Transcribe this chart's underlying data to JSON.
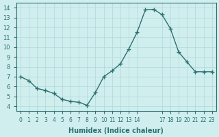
{
  "x": [
    0,
    1,
    2,
    3,
    4,
    5,
    6,
    7,
    8,
    9,
    10,
    11,
    12,
    13,
    14,
    15,
    16,
    17,
    18,
    19,
    20,
    21,
    22,
    23
  ],
  "y": [
    7.0,
    6.6,
    5.8,
    5.6,
    5.3,
    4.7,
    4.5,
    4.4,
    4.1,
    5.4,
    7.0,
    7.6,
    8.3,
    9.8,
    11.5,
    13.8,
    13.85,
    13.3,
    11.9,
    9.5,
    8.5,
    7.5,
    7.5,
    7.5
  ],
  "xlabel": "Humidex (Indice chaleur)",
  "ylim": [
    3.5,
    14.5
  ],
  "xlim": [
    -0.5,
    23.5
  ],
  "line_color": "#2d7070",
  "bg_color": "#d0eeee",
  "grid_color": "#b0d8d8",
  "yticks": [
    4,
    5,
    6,
    7,
    8,
    9,
    10,
    11,
    12,
    13,
    14
  ],
  "xtick_positions": [
    0,
    1,
    2,
    3,
    4,
    5,
    6,
    7,
    8,
    9,
    10,
    11,
    12,
    13,
    14,
    17,
    18,
    19,
    20,
    21,
    22,
    23
  ],
  "xtick_labels": [
    "0",
    "1",
    "2",
    "3",
    "4",
    "5",
    "6",
    "7",
    "8",
    "9",
    "10",
    "11",
    "12",
    "13",
    "14",
    "17",
    "18",
    "19",
    "20",
    "21",
    "22",
    "23"
  ]
}
